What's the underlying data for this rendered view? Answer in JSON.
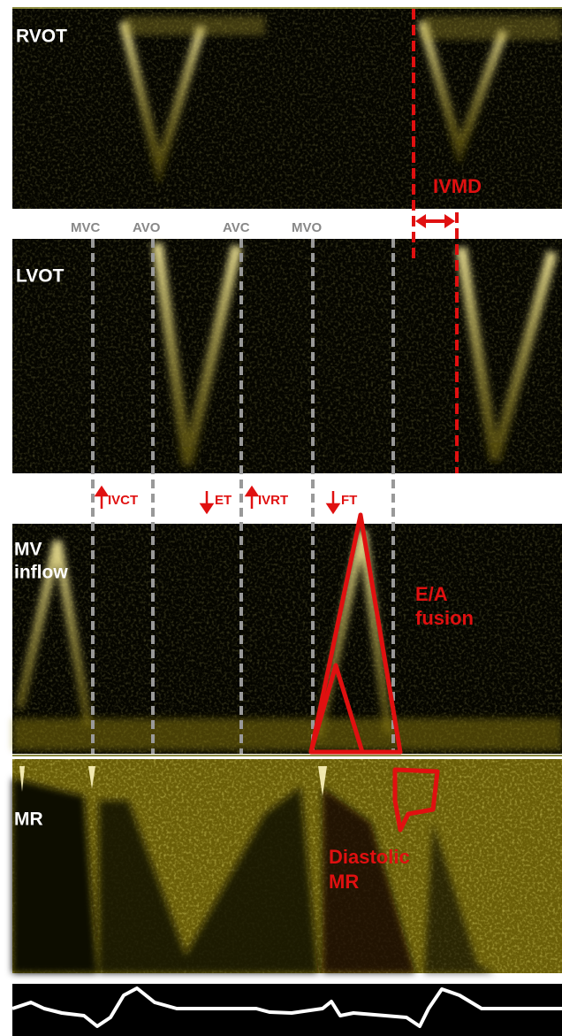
{
  "panels": {
    "rvot": "RVOT",
    "lvot": "LVOT",
    "mv_inflow": [
      "MV",
      "inflow"
    ],
    "mr": "MR"
  },
  "timing_events": [
    "MVC",
    "AVO",
    "AVC",
    "MVO"
  ],
  "intervals": [
    "IVCT",
    "ET",
    "IVRT",
    "FT"
  ],
  "annotations": {
    "ivmd": "IVMD",
    "ea_fusion": [
      "E/A",
      "fusion"
    ],
    "diastolic_mr": [
      "Diastolic",
      "MR"
    ]
  }
}
